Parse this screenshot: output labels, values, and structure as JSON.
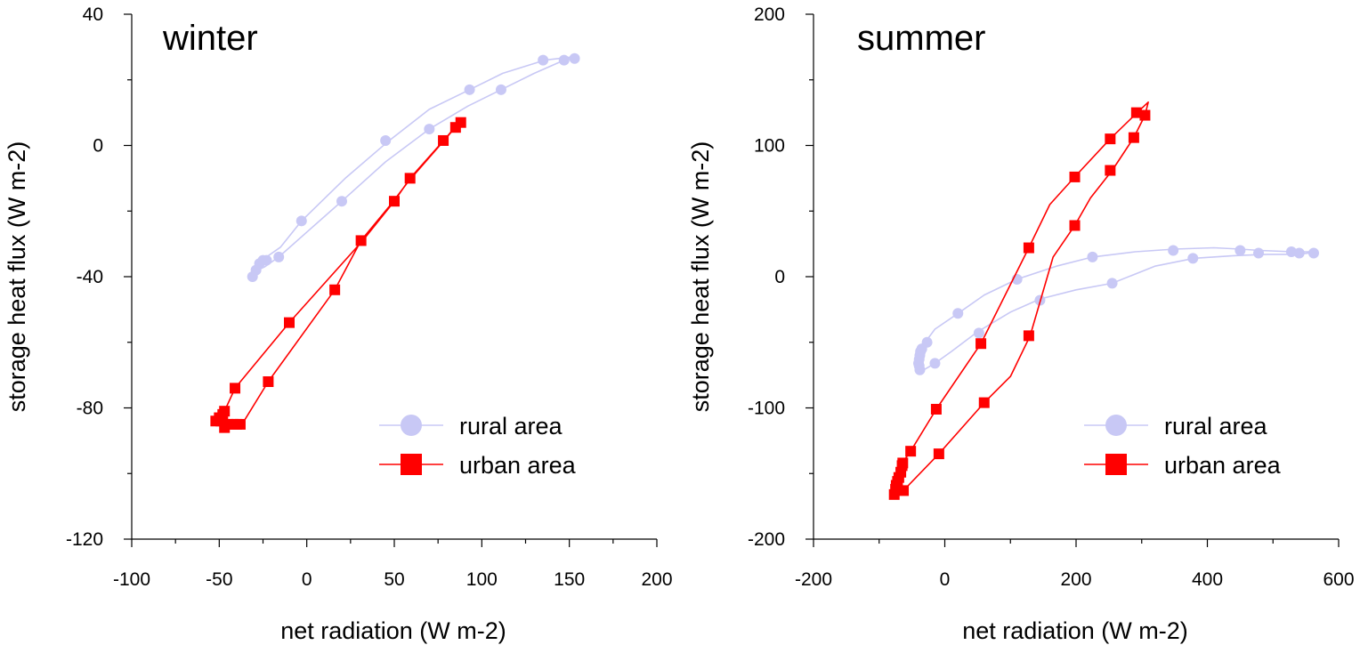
{
  "chart_data": [
    {
      "type": "scatter",
      "title": "winter",
      "xlabel": "net radiation (W m-2)",
      "ylabel": "storage heat flux (W m-2)",
      "xlim": [
        -100,
        200
      ],
      "ylim": [
        -120,
        40
      ],
      "xticks": [
        -100,
        -50,
        0,
        50,
        100,
        150,
        200
      ],
      "yticks": [
        -120,
        -80,
        -40,
        0,
        40
      ],
      "xtick_labels": [
        "-100",
        "-50",
        "0",
        "50",
        "100",
        "150",
        "200"
      ],
      "ytick_labels": [
        "-120",
        "-80",
        "-40",
        "0",
        "40"
      ],
      "legend_position": "lower-right",
      "series": [
        {
          "name": "rural area",
          "color": "#c8c8f5",
          "marker": "circle",
          "line": [
            [
              -31,
              -40
            ],
            [
              -29,
              -38
            ],
            [
              -27,
              -36
            ],
            [
              -25,
              -35
            ],
            [
              -23,
              -34
            ],
            [
              -15,
              -31
            ],
            [
              -3,
              -23
            ],
            [
              22,
              -10
            ],
            [
              46,
              1
            ],
            [
              70,
              11
            ],
            [
              93,
              17
            ],
            [
              112,
              22
            ],
            [
              136,
              26
            ],
            [
              152,
              27
            ],
            [
              154,
              27
            ],
            [
              147,
              26
            ],
            [
              130,
              22
            ],
            [
              111,
              17
            ],
            [
              92,
              12
            ],
            [
              70,
              5
            ],
            [
              45,
              -5
            ],
            [
              20,
              -17
            ],
            [
              3,
              -25
            ],
            [
              -16,
              -34
            ],
            [
              -24,
              -37
            ],
            [
              -28,
              -38
            ],
            [
              -31,
              -40
            ]
          ],
          "points": [
            [
              -31,
              -40
            ],
            [
              -29,
              -38
            ],
            [
              -27,
              -36
            ],
            [
              -25,
              -35
            ],
            [
              -23,
              -35
            ],
            [
              -16,
              -34
            ],
            [
              -3,
              -23
            ],
            [
              20,
              -17
            ],
            [
              45,
              1.5
            ],
            [
              70,
              5
            ],
            [
              93,
              17
            ],
            [
              111,
              17
            ],
            [
              135,
              26
            ],
            [
              147,
              26
            ],
            [
              153,
              26.5
            ]
          ]
        },
        {
          "name": "urban area",
          "color": "#ff0000",
          "marker": "square",
          "line": [
            [
              -49,
              -84
            ],
            [
              -50,
              -83
            ],
            [
              -48,
              -82
            ],
            [
              -47,
              -81
            ],
            [
              -41,
              -74
            ],
            [
              -10,
              -54
            ],
            [
              32,
              -29
            ],
            [
              50,
              -17
            ],
            [
              59,
              -10
            ],
            [
              79,
              2
            ],
            [
              87,
              7
            ],
            [
              89,
              8
            ],
            [
              84,
              5
            ],
            [
              76,
              0
            ],
            [
              58,
              -11
            ],
            [
              48,
              -18
            ],
            [
              31,
              -29
            ],
            [
              16,
              -44
            ],
            [
              -22,
              -72
            ],
            [
              -37,
              -85
            ],
            [
              -42,
              -85
            ],
            [
              -47,
              -86
            ],
            [
              -51,
              -84
            ],
            [
              -49,
              -84
            ]
          ],
          "points": [
            [
              -52,
              -84
            ],
            [
              -49,
              -84
            ],
            [
              -50,
              -83
            ],
            [
              -48,
              -82
            ],
            [
              -47,
              -81
            ],
            [
              -47,
              -86
            ],
            [
              -45,
              -85
            ],
            [
              -42,
              -85
            ],
            [
              -40,
              -85
            ],
            [
              -38,
              -85
            ],
            [
              -41,
              -74
            ],
            [
              -22,
              -72
            ],
            [
              -10,
              -54
            ],
            [
              16,
              -44
            ],
            [
              31,
              -29
            ],
            [
              50,
              -17
            ],
            [
              59,
              -10
            ],
            [
              78,
              1.5
            ],
            [
              85,
              5.5
            ],
            [
              88,
              7
            ]
          ]
        }
      ]
    },
    {
      "type": "scatter",
      "title": "summer",
      "xlabel": "net radiation (W m-2)",
      "ylabel": "storage heat flux (W m-2)",
      "xlim": [
        -200,
        600
      ],
      "ylim": [
        -200,
        200
      ],
      "xticks": [
        -200,
        0,
        200,
        400,
        600
      ],
      "yticks": [
        -200,
        -100,
        0,
        100,
        200
      ],
      "xtick_labels": [
        "-200",
        "0",
        "200",
        "400",
        "600"
      ],
      "ytick_labels": [
        "-200",
        "-100",
        "0",
        "100",
        "200"
      ],
      "legend_position": "lower-right",
      "series": [
        {
          "name": "rural area",
          "color": "#c8c8f5",
          "marker": "circle",
          "line": [
            [
              -38,
              -71
            ],
            [
              -40,
              -69
            ],
            [
              -40,
              -66
            ],
            [
              -39,
              -63
            ],
            [
              -38,
              -60
            ],
            [
              -37,
              -57
            ],
            [
              -35,
              -55
            ],
            [
              -30,
              -50
            ],
            [
              -15,
              -40
            ],
            [
              20,
              -28
            ],
            [
              60,
              -14
            ],
            [
              110,
              -2
            ],
            [
              170,
              8
            ],
            [
              225,
              15
            ],
            [
              290,
              19
            ],
            [
              350,
              21
            ],
            [
              410,
              22
            ],
            [
              450,
              21
            ],
            [
              480,
              20
            ],
            [
              530,
              19
            ],
            [
              562,
              19
            ],
            [
              555,
              18
            ],
            [
              535,
              17
            ],
            [
              490,
              17
            ],
            [
              440,
              16
            ],
            [
              380,
              14
            ],
            [
              320,
              8
            ],
            [
              255,
              -5
            ],
            [
              200,
              -10
            ],
            [
              145,
              -17
            ],
            [
              100,
              -27
            ],
            [
              50,
              -42
            ],
            [
              10,
              -57
            ],
            [
              -15,
              -66
            ],
            [
              -32,
              -71
            ],
            [
              -38,
              -71
            ]
          ],
          "points": [
            [
              -38,
              -71
            ],
            [
              -39,
              -68
            ],
            [
              -40,
              -66
            ],
            [
              -39,
              -63
            ],
            [
              -38,
              -60
            ],
            [
              -37,
              -57
            ],
            [
              -35,
              -55
            ],
            [
              -27,
              -50
            ],
            [
              -15,
              -66
            ],
            [
              20,
              -28
            ],
            [
              52,
              -43
            ],
            [
              110,
              -2
            ],
            [
              145,
              -18
            ],
            [
              225,
              15
            ],
            [
              255,
              -5
            ],
            [
              348,
              20
            ],
            [
              378,
              14
            ],
            [
              450,
              20
            ],
            [
              478,
              18
            ],
            [
              528,
              19
            ],
            [
              540,
              18
            ],
            [
              562,
              18
            ]
          ]
        },
        {
          "name": "urban area",
          "color": "#ff0000",
          "marker": "square",
          "line": [
            [
              -77,
              -165
            ],
            [
              -76,
              -162
            ],
            [
              -74,
              -159
            ],
            [
              -72,
              -155
            ],
            [
              -70,
              -151
            ],
            [
              -68,
              -147
            ],
            [
              -65,
              -142
            ],
            [
              -52,
              -133
            ],
            [
              -13,
              -101
            ],
            [
              55,
              -51
            ],
            [
              128,
              22
            ],
            [
              160,
              55
            ],
            [
              198,
              76
            ],
            [
              252,
              105
            ],
            [
              295,
              126
            ],
            [
              310,
              133
            ],
            [
              305,
              123
            ],
            [
              288,
              106
            ],
            [
              255,
              81
            ],
            [
              222,
              60
            ],
            [
              198,
              39
            ],
            [
              165,
              15
            ],
            [
              130,
              -45
            ],
            [
              100,
              -76
            ],
            [
              60,
              -96
            ],
            [
              -9,
              -135
            ],
            [
              -63,
              -163
            ],
            [
              -77,
              -165
            ]
          ],
          "points": [
            [
              -77,
              -166
            ],
            [
              -75,
              -162
            ],
            [
              -74,
              -159
            ],
            [
              -72,
              -156
            ],
            [
              -70,
              -153
            ],
            [
              -67,
              -149
            ],
            [
              -65,
              -144
            ],
            [
              -64,
              -142
            ],
            [
              -63,
              -163
            ],
            [
              -52,
              -133
            ],
            [
              -13,
              -101
            ],
            [
              -9,
              -135
            ],
            [
              55,
              -51
            ],
            [
              60,
              -96
            ],
            [
              128,
              22
            ],
            [
              128,
              -45
            ],
            [
              198,
              76
            ],
            [
              198,
              39
            ],
            [
              252,
              105
            ],
            [
              252,
              81
            ],
            [
              288,
              106
            ],
            [
              292,
              125
            ],
            [
              305,
              123
            ]
          ]
        }
      ]
    }
  ]
}
